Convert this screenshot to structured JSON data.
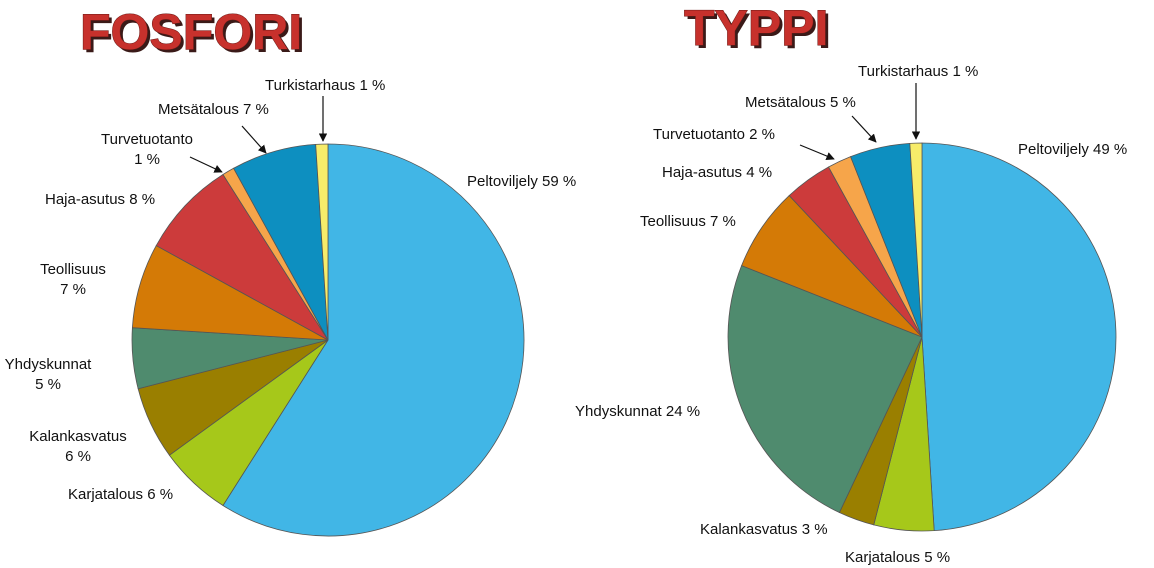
{
  "chart_data": [
    {
      "type": "pie",
      "title": "FOSFORI",
      "categories": [
        "Peltoviljely",
        "Karjatalous",
        "Kalankasvatus",
        "Yhdyskunnat",
        "Teollisuus",
        "Haja-asutus",
        "Turvetuotanto",
        "Metsätalous",
        "Turkistarhaus"
      ],
      "values": [
        59,
        6,
        6,
        5,
        7,
        8,
        1,
        7,
        1
      ],
      "value_labels": [
        "59 %",
        "6 %",
        "6 %",
        "5 %",
        "7 %",
        "8 %",
        "1 %",
        "7 %",
        "1 %"
      ],
      "colors": [
        "#41b6e6",
        "#a6c81a",
        "#9a7f00",
        "#4f8b6e",
        "#d47a06",
        "#cc3b3b",
        "#f6a54a",
        "#0d8fc0",
        "#f7ec6a"
      ]
    },
    {
      "type": "pie",
      "title": "TYPPI",
      "categories": [
        "Peltoviljely",
        "Karjatalous",
        "Kalankasvatus",
        "Yhdyskunnat",
        "Teollisuus",
        "Haja-asutus",
        "Turvetuotanto",
        "Metsätalous",
        "Turkistarhaus"
      ],
      "values": [
        49,
        5,
        3,
        24,
        7,
        4,
        2,
        5,
        1
      ],
      "value_labels": [
        "49 %",
        "5 %",
        "3 %",
        "24 %",
        "7 %",
        "4 %",
        "2 %",
        "5 %",
        "1 %"
      ],
      "colors": [
        "#41b6e6",
        "#a6c81a",
        "#9a7f00",
        "#4f8b6e",
        "#d47a06",
        "#cc3b3b",
        "#f6a54a",
        "#0d8fc0",
        "#f7ec6a"
      ]
    }
  ]
}
